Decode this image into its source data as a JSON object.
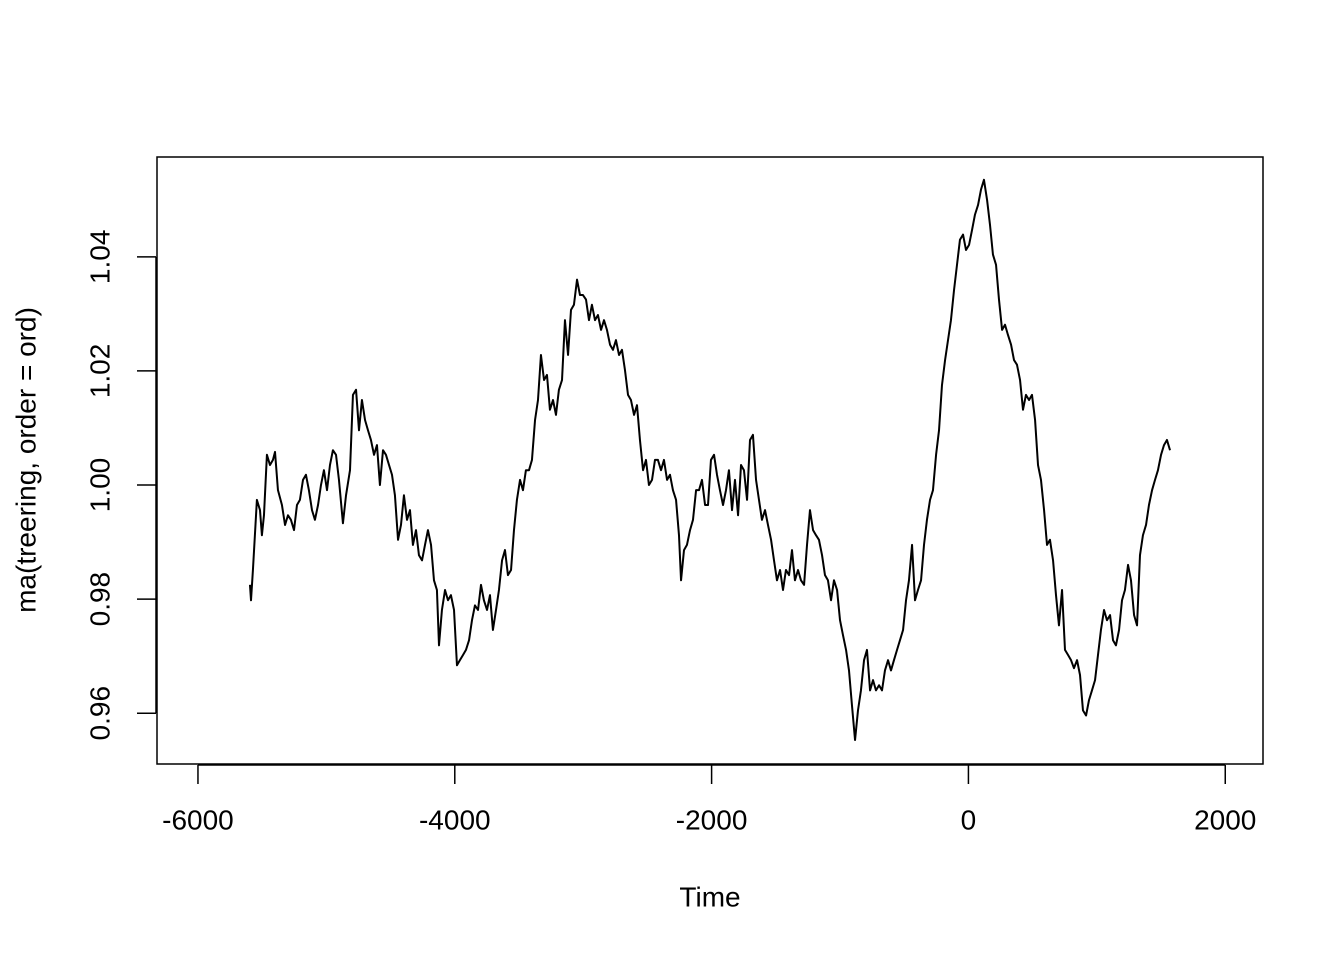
{
  "chart_data": {
    "type": "line",
    "x_label": "Time",
    "y_label": "ma(treering, order = ord)",
    "color": "#000000",
    "xlim": [
      -6319,
      2294
    ],
    "ylim": [
      0.9511,
      1.0575
    ],
    "xticks": [
      -6000,
      -4000,
      -2000,
      0,
      2000
    ],
    "yticks": [
      0.96,
      0.98,
      {
        "value": 1,
        "label": "1.00"
      },
      1.02,
      1.04
    ],
    "grid": false,
    "x": [
      -5595,
      -5587,
      -5572,
      -5541,
      -5517,
      -5502,
      -5486,
      -5463,
      -5439,
      -5416,
      -5400,
      -5377,
      -5346,
      -5322,
      -5299,
      -5276,
      -5252,
      -5229,
      -5206,
      -5182,
      -5159,
      -5136,
      -5112,
      -5089,
      -5065,
      -5042,
      -5019,
      -4995,
      -4972,
      -4949,
      -4925,
      -4902,
      -4871,
      -4847,
      -4816,
      -4793,
      -4769,
      -4746,
      -4723,
      -4699,
      -4676,
      -4653,
      -4629,
      -4606,
      -4583,
      -4559,
      -4536,
      -4512,
      -4489,
      -4466,
      -4442,
      -4419,
      -4396,
      -4372,
      -4349,
      -4326,
      -4302,
      -4279,
      -4255,
      -4232,
      -4209,
      -4185,
      -4162,
      -4139,
      -4123,
      -4100,
      -4076,
      -4053,
      -4030,
      -4006,
      -3983,
      -3960,
      -3936,
      -3913,
      -3889,
      -3866,
      -3843,
      -3819,
      -3796,
      -3773,
      -3749,
      -3726,
      -3703,
      -3679,
      -3656,
      -3632,
      -3609,
      -3586,
      -3562,
      -3539,
      -3516,
      -3492,
      -3469,
      -3446,
      -3422,
      -3399,
      -3375,
      -3352,
      -3329,
      -3305,
      -3282,
      -3259,
      -3235,
      -3212,
      -3189,
      -3165,
      -3142,
      -3118,
      -3095,
      -3072,
      -3048,
      -3025,
      -3002,
      -2978,
      -2955,
      -2932,
      -2908,
      -2885,
      -2861,
      -2838,
      -2815,
      -2791,
      -2768,
      -2745,
      -2721,
      -2698,
      -2675,
      -2651,
      -2628,
      -2604,
      -2581,
      -2558,
      -2534,
      -2511,
      -2488,
      -2464,
      -2441,
      -2418,
      -2394,
      -2371,
      -2347,
      -2324,
      -2301,
      -2277,
      -2254,
      -2238,
      -2215,
      -2192,
      -2168,
      -2145,
      -2121,
      -2098,
      -2075,
      -2051,
      -2028,
      -2005,
      -1981,
      -1958,
      -1935,
      -1911,
      -1888,
      -1865,
      -1841,
      -1818,
      -1794,
      -1771,
      -1748,
      -1724,
      -1701,
      -1678,
      -1654,
      -1631,
      -1608,
      -1584,
      -1561,
      -1537,
      -1514,
      -1491,
      -1467,
      -1444,
      -1421,
      -1397,
      -1374,
      -1351,
      -1327,
      -1304,
      -1280,
      -1257,
      -1234,
      -1210,
      -1187,
      -1164,
      -1140,
      -1117,
      -1094,
      -1070,
      -1047,
      -1023,
      -1000,
      -977,
      -953,
      -930,
      -907,
      -883,
      -860,
      -837,
      -813,
      -790,
      -766,
      -743,
      -720,
      -696,
      -673,
      -650,
      -626,
      -603,
      -580,
      -556,
      -533,
      -509,
      -486,
      -463,
      -439,
      -416,
      -393,
      -369,
      -346,
      -323,
      -299,
      -276,
      -252,
      -229,
      -206,
      -182,
      -159,
      -136,
      -112,
      -89,
      -66,
      -42,
      -19,
      5,
      28,
      51,
      75,
      98,
      121,
      145,
      168,
      191,
      215,
      238,
      262,
      285,
      308,
      332,
      355,
      378,
      402,
      425,
      448,
      472,
      495,
      519,
      542,
      565,
      589,
      612,
      635,
      659,
      682,
      705,
      729,
      752,
      776,
      799,
      822,
      846,
      869,
      892,
      916,
      939,
      962,
      986,
      1009,
      1032,
      1056,
      1079,
      1103,
      1126,
      1149,
      1173,
      1196,
      1219,
      1243,
      1266,
      1290,
      1313,
      1336,
      1359,
      1383,
      1406,
      1430,
      1453,
      1476,
      1500,
      1523,
      1546,
      1570
    ],
    "values": [
      0.9825,
      0.9798,
      0.9851,
      0.9974,
      0.9956,
      0.9912,
      0.9947,
      1.0053,
      1.0035,
      1.0044,
      1.0058,
      0.9991,
      0.9965,
      0.993,
      0.9947,
      0.9939,
      0.9921,
      0.9965,
      0.9974,
      1.0009,
      1.0018,
      0.9991,
      0.9956,
      0.9939,
      0.9965,
      1.0,
      1.0026,
      0.9991,
      1.0035,
      1.0061,
      1.0053,
      1.0009,
      0.9933,
      0.9982,
      1.0026,
      1.0158,
      1.0167,
      1.0096,
      1.0149,
      1.0114,
      1.0096,
      1.0079,
      1.0053,
      1.007,
      1.0,
      1.0061,
      1.0053,
      1.0035,
      1.0018,
      0.9982,
      0.9904,
      0.993,
      0.9982,
      0.9939,
      0.9956,
      0.9895,
      0.9921,
      0.9877,
      0.9868,
      0.9895,
      0.9921,
      0.9895,
      0.9833,
      0.9816,
      0.9719,
      0.9781,
      0.9816,
      0.9798,
      0.9807,
      0.9781,
      0.9684,
      0.9693,
      0.9702,
      0.9711,
      0.9728,
      0.9763,
      0.9789,
      0.9781,
      0.9825,
      0.9798,
      0.9781,
      0.9807,
      0.9746,
      0.9781,
      0.9816,
      0.9868,
      0.9886,
      0.9842,
      0.9851,
      0.9921,
      0.9974,
      1.0009,
      0.9991,
      1.0026,
      1.0026,
      1.0044,
      1.0114,
      1.0149,
      1.0228,
      1.0184,
      1.0193,
      1.0132,
      1.0149,
      1.0123,
      1.0167,
      1.0184,
      1.0289,
      1.0228,
      1.0307,
      1.0316,
      1.036,
      1.0333,
      1.0333,
      1.0325,
      1.0289,
      1.0316,
      1.0289,
      1.0298,
      1.0272,
      1.0289,
      1.0272,
      1.0246,
      1.0237,
      1.0254,
      1.0228,
      1.0237,
      1.0202,
      1.0158,
      1.0149,
      1.0123,
      1.014,
      1.0079,
      1.0026,
      1.0044,
      1.0,
      1.0009,
      1.0044,
      1.0044,
      1.0026,
      1.0044,
      1.0009,
      1.0018,
      0.9991,
      0.9974,
      0.9912,
      0.9833,
      0.9886,
      0.9895,
      0.9921,
      0.9939,
      0.9991,
      0.9991,
      1.0009,
      0.9965,
      0.9965,
      1.0044,
      1.0053,
      1.0018,
      0.9991,
      0.9965,
      0.9991,
      1.0026,
      0.9956,
      1.0009,
      0.9947,
      1.0035,
      1.0026,
      0.9974,
      1.0079,
      1.0088,
      1.0009,
      0.9974,
      0.9939,
      0.9956,
      0.993,
      0.9904,
      0.9868,
      0.9833,
      0.9851,
      0.9816,
      0.9851,
      0.9842,
      0.9886,
      0.9833,
      0.9851,
      0.9833,
      0.9825,
      0.9895,
      0.9956,
      0.9921,
      0.9912,
      0.9904,
      0.9877,
      0.9842,
      0.9833,
      0.9798,
      0.9833,
      0.9816,
      0.9763,
      0.9737,
      0.9711,
      0.9675,
      0.9614,
      0.9553,
      0.9605,
      0.964,
      0.9693,
      0.9711,
      0.964,
      0.9658,
      0.964,
      0.9649,
      0.964,
      0.9675,
      0.9693,
      0.9675,
      0.9693,
      0.9711,
      0.9728,
      0.9746,
      0.9798,
      0.9833,
      0.9895,
      0.9798,
      0.9816,
      0.9833,
      0.9895,
      0.9939,
      0.9974,
      0.9991,
      1.0053,
      1.0096,
      1.0175,
      1.0219,
      1.0254,
      1.0289,
      1.0342,
      1.0386,
      1.043,
      1.0439,
      1.0412,
      1.0421,
      1.0447,
      1.0474,
      1.0491,
      1.0518,
      1.0535,
      1.05,
      1.0456,
      1.0404,
      1.0386,
      1.0325,
      1.0272,
      1.0281,
      1.0263,
      1.0246,
      1.0219,
      1.0211,
      1.0184,
      1.0132,
      1.0158,
      1.0149,
      1.0158,
      1.0114,
      1.0035,
      1.0009,
      0.9956,
      0.9895,
      0.9904,
      0.9868,
      0.9807,
      0.9754,
      0.9816,
      0.9711,
      0.9702,
      0.9693,
      0.9679,
      0.9693,
      0.9667,
      0.9605,
      0.9596,
      0.9623,
      0.964,
      0.9658,
      0.9702,
      0.9746,
      0.9781,
      0.9763,
      0.9772,
      0.9728,
      0.9719,
      0.9746,
      0.9798,
      0.9816,
      0.986,
      0.9833,
      0.9772,
      0.9754,
      0.9877,
      0.9912,
      0.993,
      0.9965,
      0.9991,
      1.0009,
      1.0026,
      1.0053,
      1.007,
      1.0079,
      1.0061
    ]
  }
}
